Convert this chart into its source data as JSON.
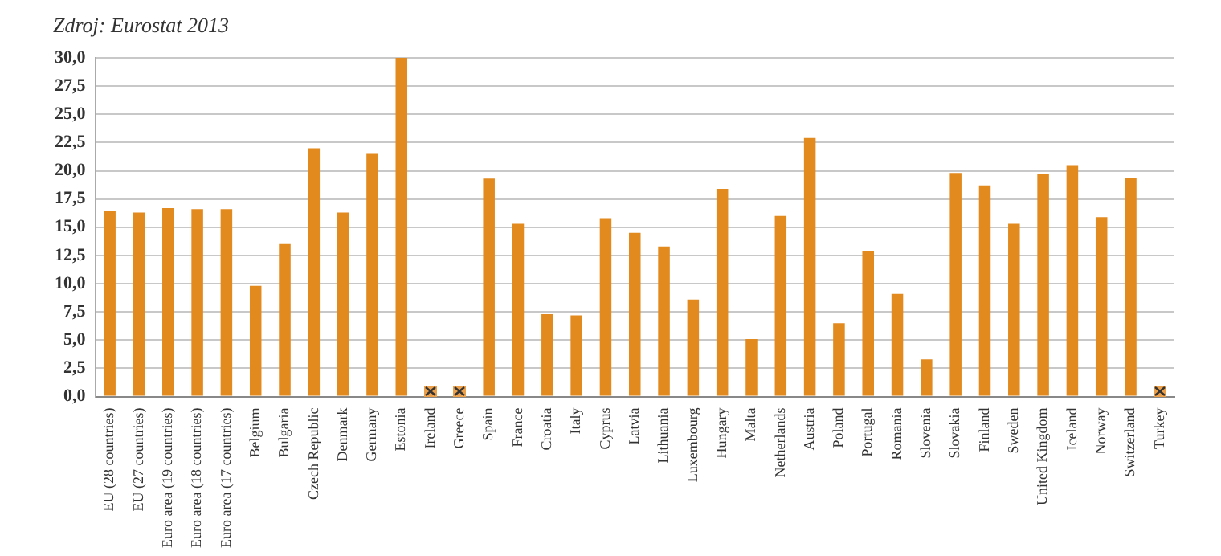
{
  "chart_data": {
    "type": "bar",
    "annotations": [
      "Zdroj: Eurostat 2013"
    ],
    "categories": [
      "EU (28 countries)",
      "EU (27 countries)",
      "Euro area (19 countries)",
      "Euro area (18 countries)",
      "Euro area (17 countries)",
      "Belgium",
      "Bulgaria",
      "Czech Republic",
      "Denmark",
      "Germany",
      "Estonia",
      "Ireland",
      "Greece",
      "Spain",
      "France",
      "Croatia",
      "Italy",
      "Cyprus",
      "Latvia",
      "Lithuania",
      "Luxembourg",
      "Hungary",
      "Malta",
      "Netherlands",
      "Austria",
      "Poland",
      "Portugal",
      "Romania",
      "Slovenia",
      "Slovakia",
      "Finland",
      "Sweden",
      "United Kingdom",
      "Iceland",
      "Norway",
      "Switzerland",
      "Turkey"
    ],
    "values": [
      16.4,
      16.3,
      16.7,
      16.6,
      16.6,
      9.8,
      13.5,
      22.0,
      16.3,
      21.5,
      30.0,
      null,
      null,
      19.3,
      15.3,
      7.3,
      7.2,
      15.8,
      14.5,
      13.3,
      8.6,
      18.4,
      5.1,
      16.0,
      22.9,
      6.5,
      12.9,
      9.1,
      3.3,
      19.8,
      18.7,
      15.3,
      19.7,
      20.5,
      15.9,
      19.4,
      null
    ],
    "color": "#e38a1f",
    "ylim": [
      0,
      30
    ],
    "yticks": [
      {
        "value": 0,
        "label": "0,0"
      },
      {
        "value": 2.5,
        "label": "2,5"
      },
      {
        "value": 5,
        "label": "5,0"
      },
      {
        "value": 7.5,
        "label": "7,5"
      },
      {
        "value": 10,
        "label": "10,0"
      },
      {
        "value": 12.5,
        "label": "12,5"
      },
      {
        "value": 15,
        "label": "15,0"
      },
      {
        "value": 17.5,
        "label": "17,5"
      },
      {
        "value": 20,
        "label": "20,0"
      },
      {
        "value": 22.5,
        "label": "22,5"
      },
      {
        "value": 25,
        "label": "25,0"
      },
      {
        "value": 27.5,
        "label": "27,5"
      },
      {
        "value": 30,
        "label": "30,0"
      }
    ],
    "grid": "y"
  }
}
